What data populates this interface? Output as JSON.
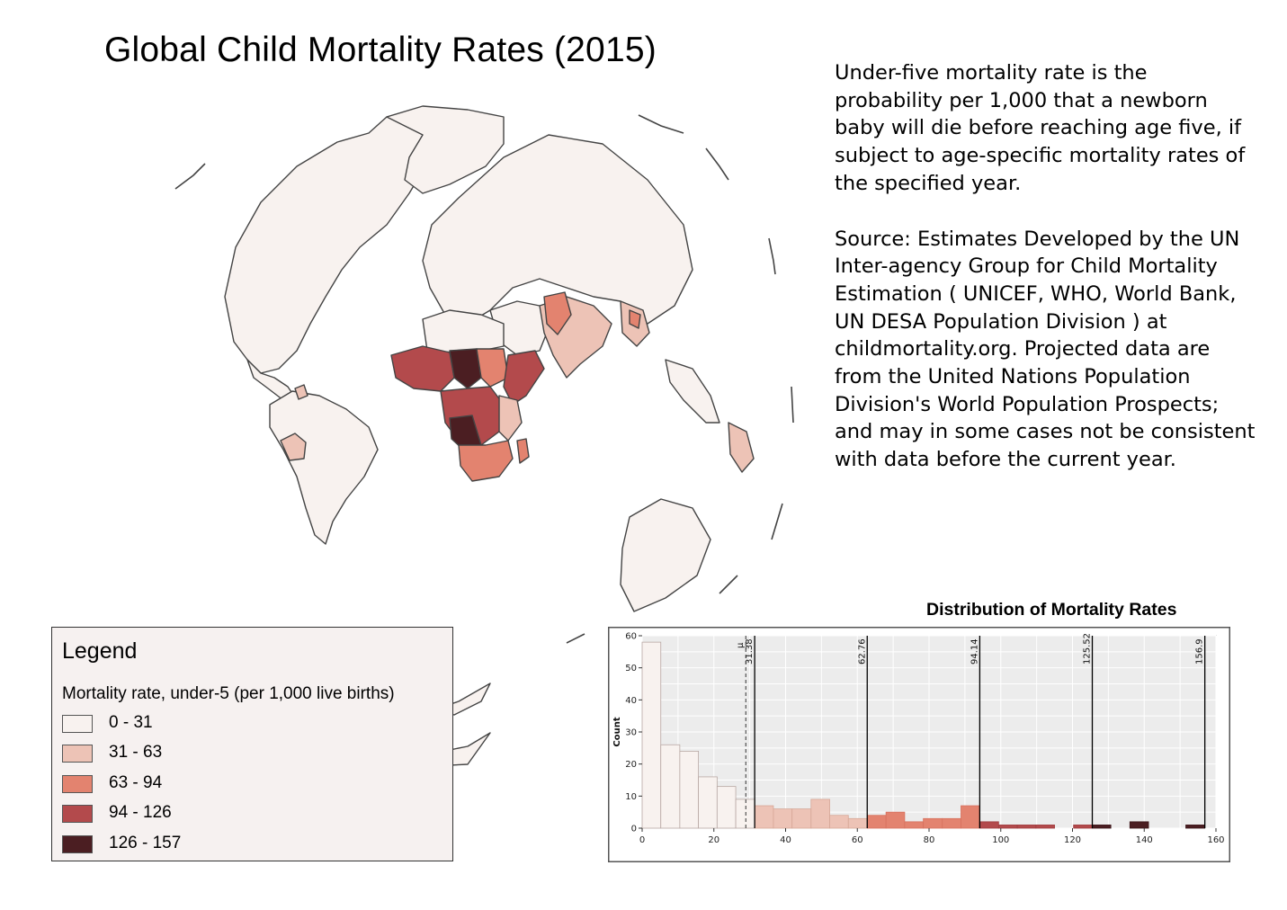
{
  "title": "Global Child Mortality Rates (2015)",
  "description": {
    "definition": "Under-five mortality rate is the probability per 1,000 that a newborn baby will die before reaching age five, if subject to age-specific mortality rates of the specified year.",
    "source": "Source: Estimates Developed by the UN Inter-agency Group for Child Mortality Estimation ( UNICEF, WHO, World Bank, UN DESA Population Division ) at childmortality.org. Projected data are from the United Nations Population Division's World Population Prospects; and may in some cases not be consistent with data before the current year."
  },
  "legend": {
    "title": "Legend",
    "subtitle": "Mortality rate, under-5 (per 1,000 live births)",
    "classes": [
      {
        "label": "0 - 31",
        "color": "#f8f2ef"
      },
      {
        "label": "31 - 63",
        "color": "#edc3b6"
      },
      {
        "label": "63 - 94",
        "color": "#e3836f"
      },
      {
        "label": "94 - 126",
        "color": "#b34a4c"
      },
      {
        "label": "126 - 157",
        "color": "#4b1e22"
      }
    ]
  },
  "map": {
    "ocean_color": "#ffffff",
    "land_base_color": "#f8f2ef",
    "border_color": "#444444"
  },
  "chart_data": {
    "type": "bar",
    "title": "Distribution of Mortality Rates",
    "xlabel": "",
    "ylabel": "Count",
    "xlim": [
      0,
      160
    ],
    "ylim": [
      0,
      60
    ],
    "x_ticks": [
      0,
      20,
      40,
      60,
      80,
      100,
      120,
      140,
      160
    ],
    "y_ticks": [
      0,
      10,
      20,
      30,
      40,
      50,
      60
    ],
    "grid": true,
    "bins": [
      {
        "start": 0,
        "end": 5.2,
        "count": 58,
        "class": 0
      },
      {
        "start": 5.2,
        "end": 10.5,
        "count": 26,
        "class": 0
      },
      {
        "start": 10.5,
        "end": 15.7,
        "count": 24,
        "class": 0
      },
      {
        "start": 15.7,
        "end": 20.9,
        "count": 16,
        "class": 0
      },
      {
        "start": 20.9,
        "end": 26.1,
        "count": 13,
        "class": 0
      },
      {
        "start": 26.1,
        "end": 31.4,
        "count": 9,
        "class": 0
      },
      {
        "start": 31.4,
        "end": 36.6,
        "count": 7,
        "class": 1
      },
      {
        "start": 36.6,
        "end": 41.8,
        "count": 6,
        "class": 1
      },
      {
        "start": 41.8,
        "end": 47.1,
        "count": 6,
        "class": 1
      },
      {
        "start": 47.1,
        "end": 52.3,
        "count": 9,
        "class": 1
      },
      {
        "start": 52.3,
        "end": 57.5,
        "count": 4,
        "class": 1
      },
      {
        "start": 57.5,
        "end": 62.8,
        "count": 3,
        "class": 1
      },
      {
        "start": 62.8,
        "end": 68.0,
        "count": 4,
        "class": 2
      },
      {
        "start": 68.0,
        "end": 73.2,
        "count": 5,
        "class": 2
      },
      {
        "start": 73.2,
        "end": 78.4,
        "count": 2,
        "class": 2
      },
      {
        "start": 78.4,
        "end": 83.7,
        "count": 3,
        "class": 2
      },
      {
        "start": 83.7,
        "end": 88.9,
        "count": 3,
        "class": 2
      },
      {
        "start": 88.9,
        "end": 94.1,
        "count": 7,
        "class": 2
      },
      {
        "start": 94.1,
        "end": 99.4,
        "count": 2,
        "class": 3
      },
      {
        "start": 99.4,
        "end": 104.6,
        "count": 1,
        "class": 3
      },
      {
        "start": 104.6,
        "end": 109.8,
        "count": 1,
        "class": 3
      },
      {
        "start": 109.8,
        "end": 115.0,
        "count": 1,
        "class": 3
      },
      {
        "start": 115.0,
        "end": 120.3,
        "count": 0,
        "class": 3
      },
      {
        "start": 120.3,
        "end": 125.5,
        "count": 1,
        "class": 3
      },
      {
        "start": 125.5,
        "end": 130.7,
        "count": 1,
        "class": 4
      },
      {
        "start": 130.7,
        "end": 136.0,
        "count": 0,
        "class": 4
      },
      {
        "start": 136.0,
        "end": 141.2,
        "count": 2,
        "class": 4
      },
      {
        "start": 141.2,
        "end": 146.4,
        "count": 0,
        "class": 4
      },
      {
        "start": 146.4,
        "end": 151.6,
        "count": 0,
        "class": 4
      },
      {
        "start": 151.6,
        "end": 156.9,
        "count": 1,
        "class": 4
      }
    ],
    "class_breaks": [
      {
        "value": 31.38,
        "label": "31.38"
      },
      {
        "value": 62.76,
        "label": "62.76"
      },
      {
        "value": 94.14,
        "label": "94.14"
      },
      {
        "value": 125.52,
        "label": "125.52"
      },
      {
        "value": 156.9,
        "label": "156.9"
      }
    ],
    "mean": {
      "value": 28.9,
      "label": "μ"
    }
  }
}
